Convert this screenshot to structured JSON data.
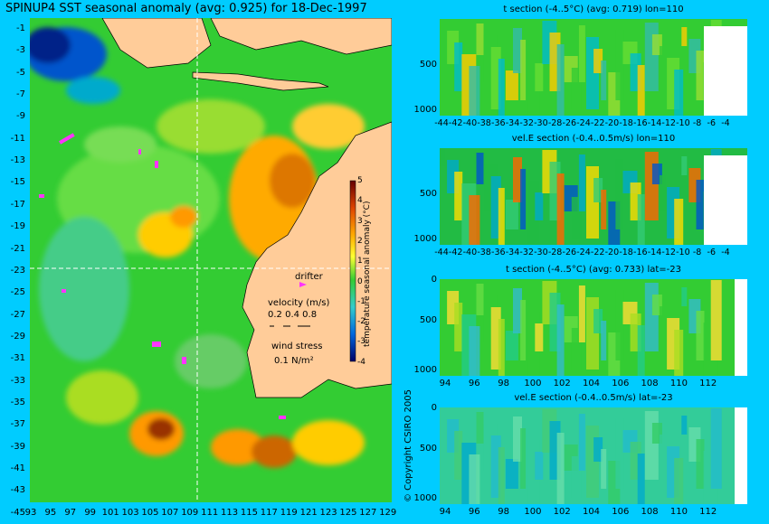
{
  "title": "SPINUP4 SST seasonal anomaly (avg: 0.925) for 18-Dec-1997",
  "copyright": "© Copyright CSIRO 2005",
  "map": {
    "lat_labels": [
      "-1",
      "-3",
      "-5",
      "-7",
      "-9",
      "-11",
      "-13",
      "-15",
      "-17",
      "-19",
      "-21",
      "-23",
      "-25",
      "-27",
      "-29",
      "-31",
      "-33",
      "-35",
      "-37",
      "-39",
      "-41",
      "-43",
      "-45"
    ],
    "lon_labels": [
      "93",
      "95",
      "97",
      "99",
      "101",
      "103",
      "105",
      "107",
      "109",
      "111",
      "113",
      "115",
      "117",
      "119",
      "121",
      "123",
      "125",
      "127",
      "129"
    ],
    "section_lon": 110,
    "section_lat": -23,
    "colors": {
      "land": "#ffcc99",
      "ocean": "#22bb22",
      "warm": "#ff9900",
      "cold": "#003399",
      "drifter": "#ff33ff"
    }
  },
  "legend": {
    "drifter": "drifter",
    "velocity_label": "velocity (m/s)",
    "velocity_scale": "0.2 0.4 0.8",
    "wind_label": "wind stress",
    "wind_scale": "0.1 N/m²"
  },
  "colorbar": {
    "label": "temperature seasonal anomaly (°C)",
    "ticks": [
      "5",
      "4",
      "3",
      "2",
      "1",
      "0",
      "-1",
      "-2",
      "-3",
      "-4"
    ]
  },
  "sections": [
    {
      "title": "t section (-4..5°C) (avg: 0.719) lon=110",
      "y_ticks": [
        "500",
        "1000"
      ],
      "x_ticks": [
        "-44",
        "-42",
        "-40",
        "-38",
        "-36",
        "-34",
        "-32",
        "-30",
        "-28",
        "-26",
        "-24",
        "-22",
        "-20",
        "-18",
        "-16",
        "-14",
        "-12",
        "-10",
        "-8",
        "-6",
        "-4"
      ]
    },
    {
      "title": "vel.E section (-0.4..0.5m/s) lon=110",
      "y_ticks": [
        "500",
        "1000"
      ],
      "x_ticks": [
        "-44",
        "-42",
        "-40",
        "-38",
        "-36",
        "-34",
        "-32",
        "-30",
        "-28",
        "-26",
        "-24",
        "-22",
        "-20",
        "-18",
        "-16",
        "-14",
        "-12",
        "-10",
        "-8",
        "-6",
        "-4"
      ]
    },
    {
      "title": "t section (-4..5°C) (avg: 0.733) lat=-23",
      "y_ticks": [
        "0",
        "500",
        "1000"
      ],
      "x_ticks": [
        "94",
        "96",
        "98",
        "100",
        "102",
        "104",
        "106",
        "108",
        "110",
        "112"
      ]
    },
    {
      "title": "vel.E section (-0.4..0.5m/s) lat=-23",
      "y_ticks": [
        "0",
        "500",
        "1000"
      ],
      "x_ticks": [
        "94",
        "96",
        "98",
        "100",
        "102",
        "104",
        "106",
        "108",
        "110",
        "112"
      ]
    }
  ]
}
